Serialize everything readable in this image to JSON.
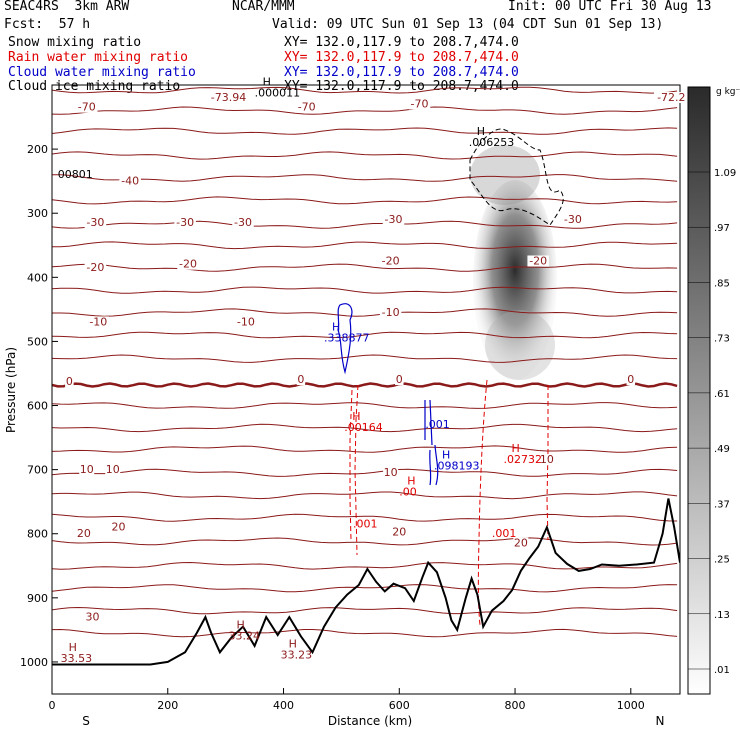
{
  "header": {
    "model": "SEAC4RS  3km ARW",
    "org": "NCAR/MMM",
    "init": "Init: 00 UTC Fri 30 Aug 13",
    "fcst": "Fcst:  57 h",
    "valid": "Valid: 09 UTC Sun 01 Sep 13 (04 CDT Sun 01 Sep 13)"
  },
  "legend": [
    {
      "label": "Snow mixing ratio",
      "xy": "XY= 132.0,117.9 to 208.7,474.0",
      "color": "#000000"
    },
    {
      "label": "Rain water mixing ratio",
      "xy": "XY= 132.0,117.9 to 208.7,474.0",
      "color": "#e00000"
    },
    {
      "label": "Cloud water mixing ratio",
      "xy": "XY= 132.0,117.9 to 208.7,474.0",
      "color": "#0000c8"
    },
    {
      "label": "Cloud ice mixing ratio",
      "xy": "XY= 132.0,117.9 to 208.7,474.0",
      "color": "#000000"
    }
  ],
  "colorbar": {
    "unit": "g kg⁻¹",
    "labels": [
      "1.09",
      ".97",
      ".85",
      ".73",
      ".61",
      ".49",
      ".37",
      ".25",
      ".13",
      ".01"
    ]
  },
  "chart_data": {
    "type": "cross-section",
    "xlabel": "Distance (km)",
    "ylabel": "Pressure (hPa)",
    "xlim": [
      0,
      1085
    ],
    "ylim": [
      1050,
      100
    ],
    "x_ticks": [
      "0",
      "200",
      "400",
      "600",
      "800",
      "1000"
    ],
    "y_ticks": [
      "200",
      "300",
      "400",
      "500",
      "600",
      "700",
      "800",
      "900",
      "1000"
    ],
    "end_labels": {
      "left": "S",
      "right": "N"
    },
    "temperature_contour_labels": [
      {
        "text": "-70",
        "x": 60,
        "p": 140
      },
      {
        "text": "-70",
        "x": 440,
        "p": 140
      },
      {
        "text": "-70",
        "x": 635,
        "p": 135
      },
      {
        "text": "-73.94",
        "x": 305,
        "p": 125
      },
      {
        "text": "-72.2",
        "x": 1070,
        "p": 125
      },
      {
        "text": "-40",
        "x": 135,
        "p": 255
      },
      {
        "text": "-30",
        "x": 75,
        "p": 320
      },
      {
        "text": "-30",
        "x": 230,
        "p": 320
      },
      {
        "text": "-30",
        "x": 330,
        "p": 320
      },
      {
        "text": "-30",
        "x": 590,
        "p": 315
      },
      {
        "text": "-30",
        "x": 900,
        "p": 315
      },
      {
        "text": "-20",
        "x": 75,
        "p": 390
      },
      {
        "text": "-20",
        "x": 235,
        "p": 385
      },
      {
        "text": "-20",
        "x": 585,
        "p": 380
      },
      {
        "text": "-20",
        "x": 840,
        "p": 380
      },
      {
        "text": "-10",
        "x": 80,
        "p": 475
      },
      {
        "text": "-10",
        "x": 335,
        "p": 475
      },
      {
        "text": "-10",
        "x": 585,
        "p": 460
      },
      {
        "text": "0",
        "x": 30,
        "p": 568
      },
      {
        "text": "0",
        "x": 430,
        "p": 565
      },
      {
        "text": "0",
        "x": 600,
        "p": 565
      },
      {
        "text": "0",
        "x": 1000,
        "p": 565
      },
      {
        "text": "10",
        "x": 60,
        "p": 705
      },
      {
        "text": "10",
        "x": 105,
        "p": 705
      },
      {
        "text": "10",
        "x": 585,
        "p": 710
      },
      {
        "text": "10",
        "x": 855,
        "p": 690
      },
      {
        "text": "20",
        "x": 115,
        "p": 795
      },
      {
        "text": "20",
        "x": 55,
        "p": 805
      },
      {
        "text": "20",
        "x": 600,
        "p": 803
      },
      {
        "text": "20",
        "x": 810,
        "p": 820
      },
      {
        "text": "30",
        "x": 70,
        "p": 935
      }
    ],
    "extremum_labels": [
      {
        "kind": "H",
        "value": ".000011",
        "x": 350,
        "p": 118,
        "color": "#000000"
      },
      {
        "kind": "H",
        "value": ".006253",
        "x": 720,
        "p": 195,
        "color": "#000000"
      },
      {
        "kind": "",
        "value": "00801",
        "x": 10,
        "p": 245,
        "color": "#000000"
      },
      {
        "kind": "H",
        "value": ".338877",
        "x": 470,
        "p": 500,
        "color": "#0000c8"
      },
      {
        "kind": "H",
        "value": ".00164",
        "x": 505,
        "p": 640,
        "color": "#e00000"
      },
      {
        "kind": "",
        "value": ".001",
        "x": 645,
        "p": 635,
        "color": "#0000c8"
      },
      {
        "kind": "H",
        "value": ".098193",
        "x": 660,
        "p": 700,
        "color": "#0000c8"
      },
      {
        "kind": "H",
        "value": ".00",
        "x": 600,
        "p": 740,
        "color": "#e00000"
      },
      {
        "kind": "H",
        "value": ".02732",
        "x": 780,
        "p": 690,
        "color": "#e00000"
      },
      {
        "kind": "",
        "value": ".001",
        "x": 520,
        "p": 790,
        "color": "#e00000"
      },
      {
        "kind": "",
        "value": ".001",
        "x": 760,
        "p": 805,
        "color": "#e00000"
      },
      {
        "kind": "H",
        "value": "33.53",
        "x": 15,
        "p": 1000,
        "color": "#8b1a1a"
      },
      {
        "kind": "H",
        "value": "33.24",
        "x": 305,
        "p": 965,
        "color": "#8b1a1a"
      },
      {
        "kind": "H",
        "value": "33.23",
        "x": 395,
        "p": 995,
        "color": "#8b1a1a"
      }
    ],
    "terrain_surface_pressure": [
      [
        0,
        1004
      ],
      [
        170,
        1004
      ],
      [
        200,
        1000
      ],
      [
        230,
        985
      ],
      [
        250,
        955
      ],
      [
        265,
        930
      ],
      [
        275,
        955
      ],
      [
        290,
        985
      ],
      [
        310,
        962
      ],
      [
        330,
        945
      ],
      [
        350,
        975
      ],
      [
        370,
        930
      ],
      [
        390,
        958
      ],
      [
        410,
        930
      ],
      [
        430,
        960
      ],
      [
        450,
        985
      ],
      [
        470,
        945
      ],
      [
        490,
        915
      ],
      [
        510,
        895
      ],
      [
        530,
        880
      ],
      [
        545,
        855
      ],
      [
        560,
        875
      ],
      [
        575,
        890
      ],
      [
        590,
        878
      ],
      [
        610,
        885
      ],
      [
        625,
        905
      ],
      [
        640,
        868
      ],
      [
        650,
        845
      ],
      [
        665,
        860
      ],
      [
        680,
        900
      ],
      [
        690,
        935
      ],
      [
        700,
        950
      ],
      [
        715,
        900
      ],
      [
        725,
        870
      ],
      [
        735,
        895
      ],
      [
        745,
        945
      ],
      [
        760,
        920
      ],
      [
        780,
        905
      ],
      [
        795,
        888
      ],
      [
        810,
        858
      ],
      [
        825,
        838
      ],
      [
        840,
        820
      ],
      [
        855,
        790
      ],
      [
        870,
        830
      ],
      [
        890,
        847
      ],
      [
        910,
        858
      ],
      [
        930,
        855
      ],
      [
        950,
        848
      ],
      [
        980,
        850
      ],
      [
        1010,
        848
      ],
      [
        1040,
        845
      ],
      [
        1055,
        800
      ],
      [
        1065,
        745
      ],
      [
        1075,
        790
      ],
      [
        1085,
        845
      ]
    ],
    "colors": {
      "temperature": "#8b1a1a",
      "freezing": "#8b1a1a",
      "rain": "#e00000",
      "cloud_water": "#0000c8",
      "terrain": "#000000"
    }
  }
}
